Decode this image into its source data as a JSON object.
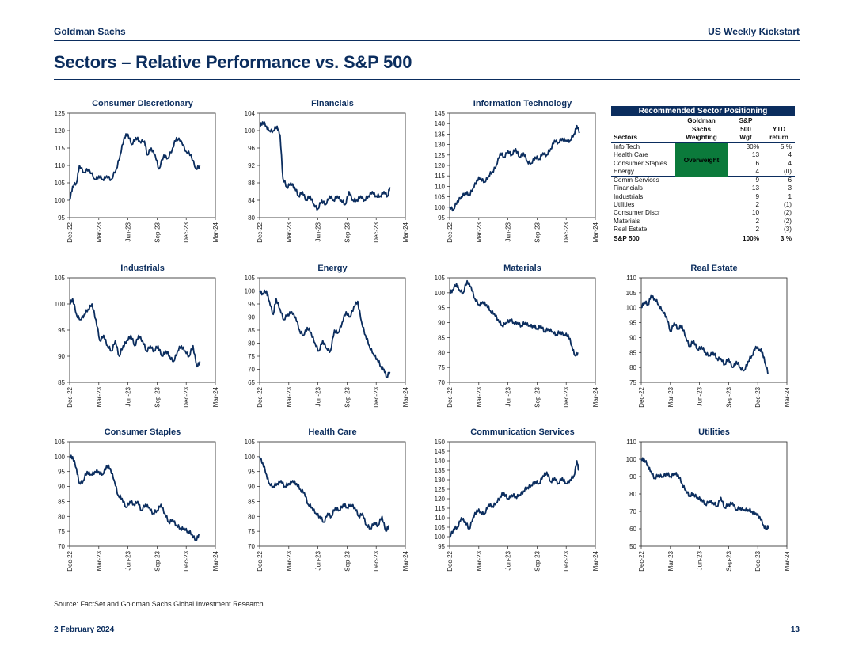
{
  "header": {
    "left": "Goldman Sachs",
    "right": "US Weekly Kickstart"
  },
  "page_title": "Sectors – Relative Performance vs. S&P 500",
  "footer": {
    "source": "Source: FactSet and Goldman Sachs Global Investment Research.",
    "date": "2 February 2024",
    "page": "13"
  },
  "colors": {
    "line": "#0b2d5e",
    "overweight": "#0b7a3b"
  },
  "x_ticks": [
    "Dec-22",
    "Mar-23",
    "Jun-23",
    "Sep-23",
    "Dec-23",
    "Mar-24"
  ],
  "table": {
    "title": "Recommended Sector Positioning",
    "headers": {
      "sectors": "Sectors",
      "weighting": "Goldman\nSachs\nWeighting",
      "wgt": "S&P\n500\nWgt",
      "ret": "YTD\nreturn"
    },
    "overweight_label": "Overweight",
    "overweight_rows": [
      {
        "name": "Info Tech",
        "wgt": "30%",
        "ret": "5 %"
      },
      {
        "name": "Health Care",
        "wgt": "13",
        "ret": "4"
      },
      {
        "name": "Consumer Staples",
        "wgt": "6",
        "ret": "4"
      },
      {
        "name": "Energy",
        "wgt": "4",
        "ret": "(0)"
      }
    ],
    "other_rows": [
      {
        "name": "Comm Services",
        "wgt": "9",
        "ret": "6"
      },
      {
        "name": "Financials",
        "wgt": "13",
        "ret": "3"
      },
      {
        "name": "Industrials",
        "wgt": "9",
        "ret": "1"
      },
      {
        "name": "Utilities",
        "wgt": "2",
        "ret": "(1)"
      },
      {
        "name": "Consumer Discr",
        "wgt": "10",
        "ret": "(2)"
      },
      {
        "name": "Materials",
        "wgt": "2",
        "ret": "(2)"
      },
      {
        "name": "Real Estate",
        "wgt": "2",
        "ret": "(3)"
      }
    ],
    "total": {
      "name": "S&P 500",
      "wgt": "100%",
      "ret": "3 %"
    }
  },
  "chart_data": [
    {
      "type": "line",
      "title": "Consumer Discretionary",
      "ylim": [
        95,
        125
      ],
      "yticks": [
        95,
        100,
        105,
        110,
        115,
        120,
        125
      ],
      "x": [
        0,
        0.3,
        0.7,
        1,
        1.5,
        2,
        2.6,
        3,
        3.4,
        3.8,
        4.3,
        4.8,
        5.2,
        5.6,
        6,
        6.4,
        6.8,
        7.2,
        7.7,
        8,
        8.4,
        8.8,
        9.2,
        9.7,
        10.1,
        10.6,
        11,
        11.5,
        12,
        12.5,
        13,
        13.4
      ],
      "values": [
        100,
        104,
        105,
        110,
        108,
        109,
        106,
        107,
        106,
        107,
        106,
        109,
        113,
        118,
        119,
        116,
        118,
        117,
        117,
        113,
        115,
        113,
        109,
        113,
        112,
        115,
        118,
        117,
        114,
        113,
        109,
        110
      ]
    },
    {
      "type": "line",
      "title": "Financials",
      "ylim": [
        80,
        104
      ],
      "yticks": [
        80,
        84,
        88,
        92,
        96,
        100,
        104
      ],
      "x": [
        0,
        0.3,
        0.7,
        1,
        1.4,
        1.8,
        2.1,
        2.4,
        2.8,
        3.2,
        3.6,
        4,
        4.4,
        4.8,
        5.2,
        5.6,
        6,
        6.4,
        6.8,
        7.2,
        7.6,
        8,
        8.4,
        8.8,
        9.2,
        9.6,
        10,
        10.4,
        10.8,
        11.2,
        11.6,
        12,
        12.4,
        12.8,
        13.2,
        13.4
      ],
      "values": [
        101,
        102,
        101,
        100,
        100,
        101,
        99,
        89,
        87,
        88,
        87,
        85,
        86,
        84,
        85,
        83,
        82,
        84,
        83,
        85,
        84,
        85,
        84,
        83,
        86,
        84,
        84,
        85,
        84,
        85,
        86,
        85,
        85,
        86,
        85,
        87
      ]
    },
    {
      "type": "line",
      "title": "Information Technology",
      "ylim": [
        95,
        145
      ],
      "yticks": [
        95,
        100,
        105,
        110,
        115,
        120,
        125,
        130,
        135,
        140,
        145
      ],
      "x": [
        0,
        0.4,
        0.8,
        1.2,
        1.6,
        2,
        2.4,
        2.8,
        3.2,
        3.6,
        4,
        4.4,
        4.8,
        5.2,
        5.6,
        6,
        6.4,
        6.8,
        7.2,
        7.6,
        8,
        8.4,
        8.8,
        9.2,
        9.6,
        10,
        10.4,
        10.8,
        11.2,
        11.6,
        12,
        12.4,
        12.8,
        13.1,
        13.4
      ],
      "values": [
        100,
        99,
        103,
        105,
        107,
        106,
        109,
        113,
        114,
        112,
        115,
        117,
        120,
        126,
        124,
        127,
        125,
        128,
        124,
        126,
        122,
        121,
        124,
        123,
        126,
        125,
        128,
        132,
        131,
        133,
        132,
        132,
        135,
        139,
        136
      ]
    },
    {
      "type": "line",
      "title": "Industrials",
      "ylim": [
        85,
        105
      ],
      "yticks": [
        85,
        90,
        95,
        100,
        105
      ],
      "x": [
        0,
        0.3,
        0.7,
        1.1,
        1.5,
        1.9,
        2.3,
        2.7,
        3.1,
        3.5,
        3.9,
        4.3,
        4.7,
        5.1,
        5.5,
        5.9,
        6.3,
        6.7,
        7.1,
        7.5,
        7.9,
        8.3,
        8.7,
        9.1,
        9.5,
        9.9,
        10.3,
        10.7,
        11.1,
        11.5,
        11.9,
        12.3,
        12.7,
        13.1,
        13.4
      ],
      "values": [
        100,
        101,
        98,
        97,
        98,
        99,
        100,
        97,
        93,
        94,
        92,
        91,
        93,
        90,
        92,
        93,
        94,
        92,
        94,
        93,
        91,
        92,
        91,
        92,
        90,
        91,
        90,
        89,
        91,
        92,
        91,
        90,
        92,
        88,
        89
      ]
    },
    {
      "type": "line",
      "title": "Energy",
      "ylim": [
        65,
        105
      ],
      "yticks": [
        65,
        70,
        75,
        80,
        85,
        90,
        95,
        100,
        105
      ],
      "x": [
        0,
        0.3,
        0.7,
        1,
        1.4,
        1.7,
        2.1,
        2.5,
        2.9,
        3.3,
        3.7,
        4.1,
        4.5,
        4.9,
        5.3,
        5.7,
        6.1,
        6.5,
        6.9,
        7.3,
        7.7,
        8.1,
        8.5,
        8.9,
        9.3,
        9.7,
        10.1,
        10.5,
        10.9,
        11.3,
        11.7,
        12.1,
        12.5,
        12.8,
        13.1,
        13.4
      ],
      "values": [
        100,
        99,
        100,
        96,
        91,
        97,
        93,
        89,
        91,
        92,
        90,
        85,
        83,
        86,
        84,
        80,
        77,
        81,
        78,
        77,
        85,
        84,
        88,
        92,
        90,
        94,
        96,
        88,
        83,
        79,
        76,
        74,
        71,
        70,
        67,
        69
      ]
    },
    {
      "type": "line",
      "title": "Materials",
      "ylim": [
        70,
        105
      ],
      "yticks": [
        70,
        75,
        80,
        85,
        90,
        95,
        100,
        105
      ],
      "x": [
        0,
        0.3,
        0.7,
        1,
        1.4,
        1.8,
        2.2,
        2.6,
        3,
        3.4,
        3.8,
        4.2,
        4.6,
        5,
        5.4,
        5.8,
        6.2,
        6.6,
        7,
        7.4,
        7.8,
        8.2,
        8.6,
        9,
        9.4,
        9.8,
        10.2,
        10.6,
        11,
        11.4,
        11.8,
        12.2,
        12.6,
        12.9,
        13.2
      ],
      "values": [
        100,
        101,
        103,
        101,
        100,
        104,
        102,
        98,
        96,
        97,
        96,
        94,
        93,
        91,
        89,
        90,
        91,
        90,
        90,
        89,
        90,
        89,
        89,
        88,
        89,
        87,
        88,
        87,
        86,
        87,
        86,
        86,
        82,
        79,
        80
      ]
    },
    {
      "type": "line",
      "title": "Real Estate",
      "ylim": [
        75,
        110
      ],
      "yticks": [
        75,
        80,
        85,
        90,
        95,
        100,
        105,
        110
      ],
      "x": [
        0,
        0.3,
        0.7,
        1,
        1.4,
        1.8,
        2.2,
        2.6,
        3,
        3.4,
        3.8,
        4.2,
        4.6,
        5,
        5.4,
        5.8,
        6.2,
        6.6,
        7,
        7.4,
        7.8,
        8.2,
        8.6,
        9,
        9.4,
        9.8,
        10.2,
        10.6,
        11,
        11.4,
        11.8,
        12.2,
        12.5,
        12.8,
        13.1
      ],
      "values": [
        100,
        102,
        101,
        104,
        103,
        101,
        99,
        97,
        92,
        95,
        93,
        94,
        90,
        87,
        89,
        86,
        87,
        85,
        84,
        85,
        83,
        83,
        81,
        83,
        80,
        82,
        80,
        79,
        82,
        84,
        87,
        86,
        85,
        81,
        78
      ]
    },
    {
      "type": "line",
      "title": "Consumer Staples",
      "ylim": [
        70,
        105
      ],
      "yticks": [
        70,
        75,
        80,
        85,
        90,
        95,
        100,
        105
      ],
      "x": [
        0,
        0.3,
        0.7,
        1,
        1.4,
        1.8,
        2.2,
        2.6,
        3,
        3.4,
        3.8,
        4.2,
        4.6,
        5,
        5.4,
        5.8,
        6.2,
        6.6,
        7,
        7.4,
        7.8,
        8.2,
        8.6,
        9,
        9.4,
        9.8,
        10.2,
        10.6,
        11,
        11.4,
        11.8,
        12.2,
        12.6,
        13,
        13.3
      ],
      "values": [
        100,
        100,
        96,
        91,
        92,
        95,
        94,
        95,
        95,
        94,
        97,
        96,
        92,
        87,
        86,
        83,
        85,
        84,
        85,
        82,
        84,
        83,
        81,
        82,
        84,
        81,
        78,
        79,
        77,
        76,
        76,
        75,
        74,
        72,
        74
      ]
    },
    {
      "type": "line",
      "title": "Health Care",
      "ylim": [
        70,
        105
      ],
      "yticks": [
        70,
        75,
        80,
        85,
        90,
        95,
        100,
        105
      ],
      "x": [
        0,
        0.3,
        0.7,
        1,
        1.4,
        1.8,
        2.2,
        2.6,
        3,
        3.4,
        3.8,
        4.2,
        4.6,
        5,
        5.4,
        5.8,
        6.2,
        6.6,
        7,
        7.4,
        7.8,
        8.2,
        8.6,
        9,
        9.4,
        9.8,
        10.2,
        10.6,
        11,
        11.4,
        11.8,
        12.2,
        12.6,
        13,
        13.3
      ],
      "values": [
        100,
        98,
        94,
        91,
        90,
        91,
        92,
        90,
        91,
        92,
        91,
        89,
        88,
        84,
        83,
        81,
        80,
        78,
        81,
        80,
        83,
        82,
        84,
        83,
        84,
        83,
        80,
        81,
        77,
        76,
        78,
        77,
        80,
        75,
        77
      ]
    },
    {
      "type": "line",
      "title": "Communication Services",
      "ylim": [
        95,
        150
      ],
      "yticks": [
        95,
        100,
        105,
        110,
        115,
        120,
        125,
        130,
        135,
        140,
        145,
        150
      ],
      "x": [
        0,
        0.4,
        0.8,
        1.2,
        1.6,
        2,
        2.4,
        2.8,
        3.2,
        3.6,
        4,
        4.4,
        4.8,
        5.2,
        5.6,
        6,
        6.4,
        6.8,
        7.2,
        7.6,
        8,
        8.4,
        8.8,
        9.2,
        9.6,
        10,
        10.4,
        10.8,
        11.2,
        11.6,
        12,
        12.4,
        12.8,
        13.1,
        13.3
      ],
      "values": [
        100,
        104,
        105,
        110,
        108,
        104,
        110,
        114,
        113,
        112,
        117,
        116,
        118,
        121,
        123,
        120,
        122,
        121,
        122,
        124,
        126,
        127,
        129,
        128,
        132,
        134,
        129,
        131,
        128,
        131,
        128,
        130,
        132,
        140,
        135
      ]
    },
    {
      "type": "line",
      "title": "Utilities",
      "ylim": [
        50,
        110
      ],
      "yticks": [
        50,
        60,
        70,
        80,
        90,
        100,
        110
      ],
      "x": [
        0,
        0.3,
        0.7,
        1,
        1.4,
        1.8,
        2.2,
        2.6,
        3,
        3.4,
        3.8,
        4.2,
        4.6,
        5,
        5.4,
        5.8,
        6.2,
        6.6,
        7,
        7.4,
        7.8,
        8.2,
        8.6,
        9,
        9.4,
        9.8,
        10.2,
        10.6,
        11,
        11.4,
        11.8,
        12.2,
        12.6,
        12.9,
        13.1
      ],
      "values": [
        100,
        100,
        96,
        93,
        89,
        91,
        90,
        92,
        90,
        92,
        91,
        86,
        82,
        79,
        80,
        78,
        77,
        74,
        76,
        75,
        73,
        78,
        72,
        74,
        75,
        71,
        72,
        71,
        71,
        70,
        69,
        67,
        62,
        60,
        62
      ]
    }
  ]
}
